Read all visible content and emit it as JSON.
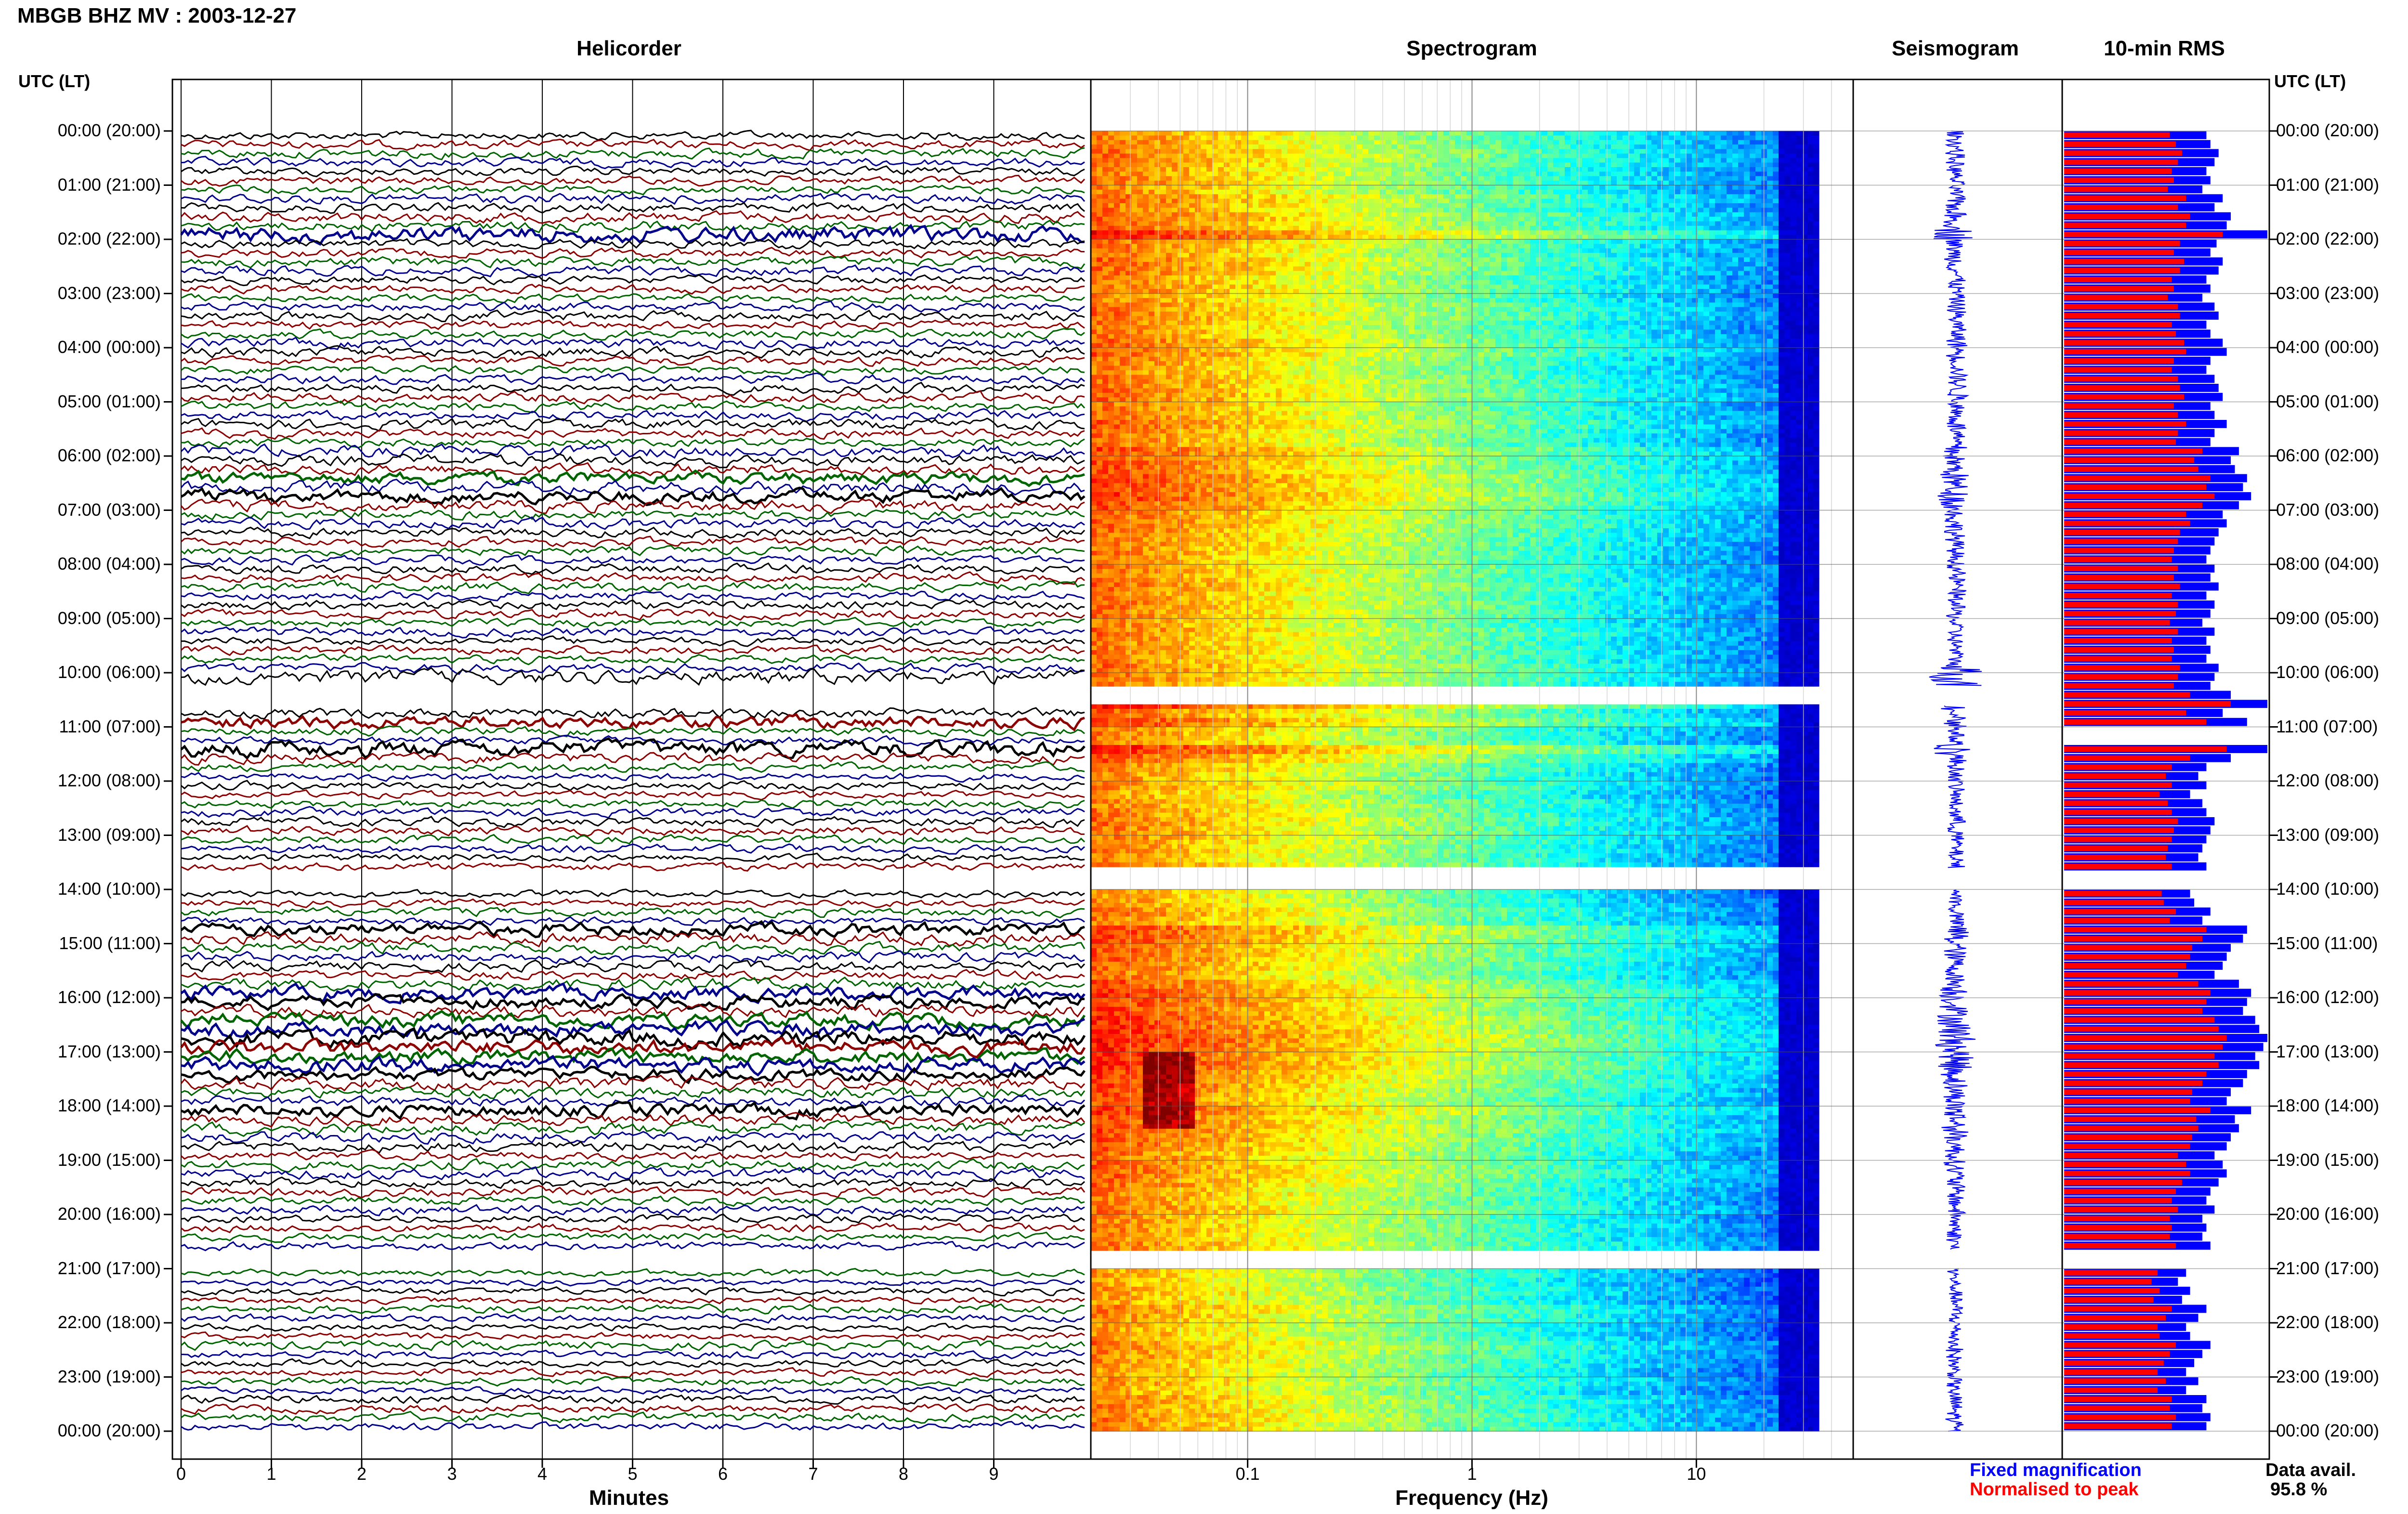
{
  "title": "MBGB BHZ MV : 2003-12-27",
  "panels": {
    "helicorder": "Helicorder",
    "spectrogram": "Spectrogram",
    "seismogram": "Seismogram",
    "rms": "10-min RMS"
  },
  "time_axis": {
    "label": "UTC (LT)",
    "ticks": [
      "00:00 (20:00)",
      "01:00 (21:00)",
      "02:00 (22:00)",
      "03:00 (23:00)",
      "04:00 (00:00)",
      "05:00 (01:00)",
      "06:00 (02:00)",
      "07:00 (03:00)",
      "08:00 (04:00)",
      "09:00 (05:00)",
      "10:00 (06:00)",
      "11:00 (07:00)",
      "12:00 (08:00)",
      "13:00 (09:00)",
      "14:00 (10:00)",
      "15:00 (11:00)",
      "16:00 (12:00)",
      "17:00 (13:00)",
      "18:00 (14:00)",
      "19:00 (15:00)",
      "20:00 (16:00)",
      "21:00 (17:00)",
      "22:00 (18:00)",
      "23:00 (19:00)",
      "00:00 (20:00)"
    ]
  },
  "legend": {
    "fixed": "Fixed magnification",
    "normalised": "Normalised to peak",
    "fixed_color": "#0000ff",
    "normalised_color": "#ff0000"
  },
  "data_availability": {
    "label": "Data avail.",
    "value": "95.8 %"
  },
  "colors": {
    "trace_cycle": [
      "#000000",
      "#8b0000",
      "#006400",
      "#00008b"
    ],
    "seismogram": "#0000ff",
    "rms_fixed": "#0000ff",
    "rms_normalised": "#ff0000"
  },
  "chart_data": {
    "type": "heatmap",
    "helicorder": {
      "xlabel": "Minutes",
      "x_ticks": [
        "0",
        "1",
        "2",
        "3",
        "4",
        "5",
        "6",
        "7",
        "8",
        "9"
      ],
      "xlim": [
        0,
        10
      ],
      "rows_per_hour": 6,
      "hours": 24,
      "data_gaps_hours": [
        [
          10.25,
          10.6
        ],
        [
          13.6,
          14.0
        ],
        [
          20.65,
          21.0
        ]
      ]
    },
    "spectrogram": {
      "xlabel": "Frequency (Hz)",
      "x_scale": "log",
      "x_ticks": [
        "0.1",
        "1",
        "10"
      ],
      "xlim": [
        0.02,
        50
      ],
      "colormap": "jet"
    },
    "rms_10min": {
      "series": [
        {
          "name": "Fixed magnification",
          "values": [
            0.7,
            0.72,
            0.76,
            0.74,
            0.7,
            0.72,
            0.68,
            0.78,
            0.74,
            0.82,
            0.8,
            1.0,
            0.75,
            0.72,
            0.78,
            0.76,
            0.7,
            0.72,
            0.68,
            0.74,
            0.76,
            0.7,
            0.72,
            0.78,
            0.8,
            0.72,
            0.7,
            0.74,
            0.76,
            0.78,
            0.72,
            0.74,
            0.8,
            0.74,
            0.72,
            0.86,
            0.82,
            0.84,
            0.9,
            0.88,
            0.92,
            0.86,
            0.78,
            0.8,
            0.76,
            0.74,
            0.72,
            0.7,
            0.74,
            0.72,
            0.76,
            0.7,
            0.74,
            0.72,
            0.68,
            0.74,
            0.7,
            0.72,
            0.7,
            0.76,
            0.74,
            0.72,
            0.82,
            1.0,
            0.78,
            0.9,
            null,
            null,
            1.0,
            0.82,
            0.7,
            0.66,
            0.7,
            0.62,
            0.68,
            0.7,
            0.74,
            0.72,
            0.7,
            0.68,
            0.66,
            0.7,
            null,
            null,
            0.62,
            0.64,
            0.72,
            0.68,
            0.9,
            0.88,
            0.82,
            0.8,
            0.78,
            0.74,
            0.86,
            0.92,
            0.9,
            0.88,
            0.94,
            0.96,
            1.0,
            0.98,
            0.94,
            0.96,
            0.9,
            0.88,
            0.82,
            0.8,
            0.92,
            0.84,
            0.86,
            0.82,
            0.8,
            0.74,
            0.78,
            0.8,
            0.76,
            0.72,
            0.7,
            0.74,
            0.68,
            0.7,
            0.68,
            0.72,
            null,
            null,
            0.6,
            0.56,
            0.62,
            0.58,
            0.7,
            0.66,
            0.6,
            0.62,
            0.72,
            0.68,
            0.64,
            0.6,
            0.66,
            0.6,
            0.7,
            0.68,
            0.72,
            0.7
          ]
        },
        {
          "name": "Normalised to peak",
          "values": [
            0.52,
            0.55,
            0.58,
            0.56,
            0.53,
            0.54,
            0.51,
            0.6,
            0.56,
            0.62,
            0.6,
            0.78,
            0.57,
            0.54,
            0.59,
            0.57,
            0.53,
            0.54,
            0.51,
            0.56,
            0.57,
            0.53,
            0.55,
            0.59,
            0.6,
            0.54,
            0.53,
            0.56,
            0.57,
            0.59,
            0.54,
            0.56,
            0.6,
            0.56,
            0.55,
            0.68,
            0.64,
            0.66,
            0.72,
            0.7,
            0.74,
            0.68,
            0.6,
            0.62,
            0.57,
            0.56,
            0.54,
            0.53,
            0.56,
            0.54,
            0.57,
            0.53,
            0.56,
            0.55,
            0.52,
            0.56,
            0.53,
            0.54,
            0.53,
            0.57,
            0.56,
            0.54,
            0.62,
            0.82,
            0.6,
            0.7,
            null,
            null,
            0.8,
            0.62,
            0.53,
            0.5,
            0.53,
            0.47,
            0.51,
            0.53,
            0.56,
            0.54,
            0.53,
            0.51,
            0.5,
            0.53,
            null,
            null,
            0.48,
            0.49,
            0.55,
            0.52,
            0.7,
            0.68,
            0.63,
            0.62,
            0.6,
            0.56,
            0.66,
            0.72,
            0.7,
            0.68,
            0.74,
            0.76,
            0.8,
            0.78,
            0.74,
            0.76,
            0.7,
            0.68,
            0.63,
            0.62,
            0.72,
            0.65,
            0.66,
            0.63,
            0.62,
            0.56,
            0.6,
            0.62,
            0.58,
            0.55,
            0.53,
            0.56,
            0.52,
            0.53,
            0.52,
            0.55,
            null,
            null,
            0.46,
            0.43,
            0.47,
            0.44,
            0.53,
            0.5,
            0.46,
            0.47,
            0.55,
            0.52,
            0.49,
            0.46,
            0.5,
            0.46,
            0.53,
            0.52,
            0.55,
            0.53
          ]
        }
      ]
    }
  }
}
